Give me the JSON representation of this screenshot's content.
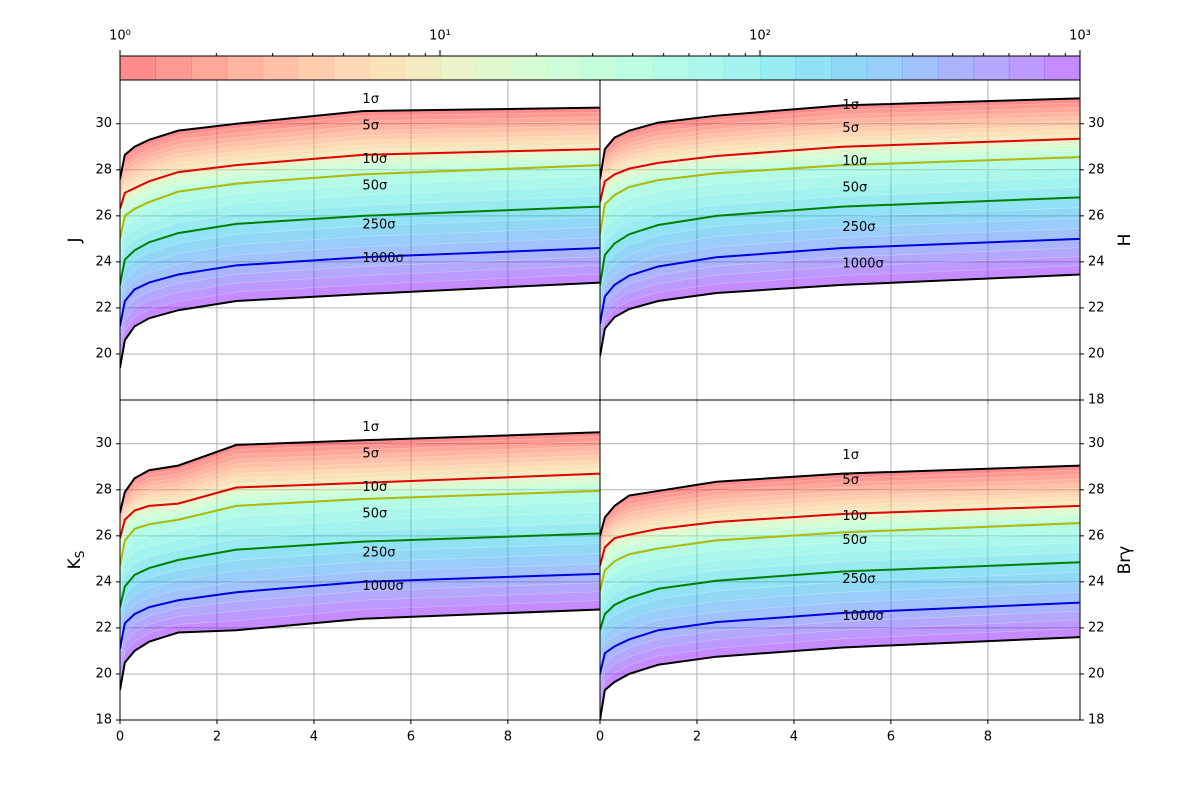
{
  "chart_data": [
    {
      "type": "colorbar",
      "log": true,
      "xlim": [
        1,
        1000
      ],
      "xticks": [
        {
          "value": 1,
          "label": "10⁰"
        },
        {
          "value": 10,
          "label": "10¹"
        },
        {
          "value": 100,
          "label": "10²"
        },
        {
          "value": 1000,
          "label": "10³"
        }
      ]
    },
    {
      "type": "line",
      "ylabel": "J",
      "ylabel_side": "left",
      "xticklabels": false,
      "grid": true,
      "x": [
        0,
        0.1,
        0.3,
        0.6,
        1.2,
        2.4,
        5,
        9.9
      ],
      "xlim": [
        0,
        9.9
      ],
      "xticks": [
        0,
        2,
        4,
        6,
        8
      ],
      "ylim": [
        18,
        31.9
      ],
      "yticks": [
        20,
        22,
        24,
        26,
        28,
        30
      ],
      "series": [
        {
          "color": "#000000",
          "values": [
            27.6,
            28.65,
            29.0,
            29.3,
            29.7,
            30.0,
            30.55,
            30.7
          ]
        },
        {
          "color": "#e00000",
          "values": [
            26.3,
            27.0,
            27.2,
            27.5,
            27.9,
            28.2,
            28.65,
            28.9
          ]
        },
        {
          "color": "#b0b800",
          "values": [
            25.0,
            26.0,
            26.3,
            26.6,
            27.05,
            27.4,
            27.8,
            28.2
          ]
        },
        {
          "color": "#008000",
          "values": [
            23.0,
            24.1,
            24.5,
            24.85,
            25.25,
            25.65,
            26.0,
            26.4
          ]
        },
        {
          "color": "#0000e0",
          "values": [
            21.2,
            22.3,
            22.8,
            23.1,
            23.45,
            23.85,
            24.2,
            24.6
          ]
        },
        {
          "color": "#000000",
          "values": [
            19.4,
            20.6,
            21.2,
            21.55,
            21.9,
            22.3,
            22.6,
            23.1
          ]
        }
      ],
      "annotations": [
        {
          "text": "1σ",
          "x": 5,
          "y": 31.05
        },
        {
          "text": "5σ",
          "x": 5,
          "y": 29.9
        },
        {
          "text": "10σ",
          "x": 5,
          "y": 28.45
        },
        {
          "text": "50σ",
          "x": 5,
          "y": 27.3
        },
        {
          "text": "250σ",
          "x": 5,
          "y": 25.6
        },
        {
          "text": "1000σ",
          "x": 5,
          "y": 24.15
        }
      ]
    },
    {
      "type": "line",
      "ylabel": "H",
      "ylabel_side": "right",
      "xticklabels": false,
      "grid": true,
      "x": [
        0,
        0.1,
        0.3,
        0.6,
        1.2,
        2.4,
        5,
        9.9
      ],
      "xlim": [
        0,
        9.9
      ],
      "xticks": [
        0,
        2,
        4,
        6,
        8
      ],
      "ylim": [
        18,
        31.9
      ],
      "yticks": [
        18,
        20,
        22,
        24,
        26,
        28,
        30
      ],
      "series": [
        {
          "color": "#000000",
          "values": [
            27.6,
            28.9,
            29.4,
            29.7,
            30.05,
            30.35,
            30.8,
            31.1
          ]
        },
        {
          "color": "#e00000",
          "values": [
            26.6,
            27.5,
            27.8,
            28.05,
            28.3,
            28.6,
            29.0,
            29.35
          ]
        },
        {
          "color": "#b0b800",
          "values": [
            25.2,
            26.5,
            26.9,
            27.25,
            27.55,
            27.85,
            28.2,
            28.55
          ]
        },
        {
          "color": "#008000",
          "values": [
            23.0,
            24.3,
            24.8,
            25.2,
            25.6,
            26.0,
            26.4,
            26.8
          ]
        },
        {
          "color": "#0000e0",
          "values": [
            21.3,
            22.5,
            23.0,
            23.4,
            23.8,
            24.2,
            24.6,
            25.0
          ]
        },
        {
          "color": "#000000",
          "values": [
            19.9,
            21.1,
            21.6,
            21.95,
            22.3,
            22.65,
            23.0,
            23.45
          ]
        }
      ],
      "annotations": [
        {
          "text": "1σ",
          "x": 5,
          "y": 30.8
        },
        {
          "text": "5σ",
          "x": 5,
          "y": 29.8
        },
        {
          "text": "10σ",
          "x": 5,
          "y": 28.35
        },
        {
          "text": "50σ",
          "x": 5,
          "y": 27.2
        },
        {
          "text": "250σ",
          "x": 5,
          "y": 25.5
        },
        {
          "text": "1000σ",
          "x": 5,
          "y": 23.9
        }
      ]
    },
    {
      "type": "line",
      "ylabel": "K",
      "ylabel_subscript": "S",
      "ylabel_side": "left",
      "xticklabels": true,
      "grid": true,
      "x": [
        0,
        0.1,
        0.3,
        0.6,
        1.2,
        2.4,
        5,
        9.9
      ],
      "xlim": [
        0,
        9.9
      ],
      "xticks": [
        0,
        2,
        4,
        6,
        8
      ],
      "ylim": [
        18,
        31.9
      ],
      "yticks": [
        18,
        20,
        22,
        24,
        26,
        28,
        30
      ],
      "series": [
        {
          "color": "#000000",
          "values": [
            27.0,
            27.9,
            28.5,
            28.85,
            29.05,
            29.95,
            30.15,
            30.5
          ]
        },
        {
          "color": "#e00000",
          "values": [
            25.9,
            26.7,
            27.1,
            27.3,
            27.4,
            28.1,
            28.3,
            28.7
          ]
        },
        {
          "color": "#b0b800",
          "values": [
            24.7,
            25.8,
            26.3,
            26.5,
            26.7,
            27.3,
            27.6,
            27.95
          ]
        },
        {
          "color": "#008000",
          "values": [
            22.9,
            23.8,
            24.3,
            24.6,
            24.95,
            25.4,
            25.75,
            26.1
          ]
        },
        {
          "color": "#0000e0",
          "values": [
            21.1,
            22.2,
            22.6,
            22.9,
            23.2,
            23.55,
            24.0,
            24.35
          ]
        },
        {
          "color": "#000000",
          "values": [
            19.3,
            20.5,
            21.0,
            21.4,
            21.8,
            21.9,
            22.4,
            22.8
          ]
        }
      ],
      "annotations": [
        {
          "text": "1σ",
          "x": 5,
          "y": 30.7
        },
        {
          "text": "5σ",
          "x": 5,
          "y": 29.55
        },
        {
          "text": "10σ",
          "x": 5,
          "y": 28.1
        },
        {
          "text": "50σ",
          "x": 5,
          "y": 26.95
        },
        {
          "text": "250σ",
          "x": 5,
          "y": 25.25
        },
        {
          "text": "1000σ",
          "x": 5,
          "y": 23.8
        }
      ]
    },
    {
      "type": "line",
      "ylabel": "Brγ",
      "ylabel_side": "right",
      "xticklabels": true,
      "grid": true,
      "x": [
        0,
        0.1,
        0.3,
        0.6,
        1.2,
        2.4,
        5,
        9.9
      ],
      "xlim": [
        0,
        9.9
      ],
      "xticks": [
        0,
        2,
        4,
        6,
        8
      ],
      "ylim": [
        18,
        31.9
      ],
      "yticks": [
        18,
        20,
        22,
        24,
        26,
        28,
        30
      ],
      "series": [
        {
          "color": "#000000",
          "values": [
            26.0,
            26.8,
            27.3,
            27.75,
            27.95,
            28.35,
            28.7,
            29.05
          ]
        },
        {
          "color": "#e00000",
          "values": [
            24.7,
            25.5,
            25.9,
            26.05,
            26.3,
            26.6,
            26.95,
            27.3
          ]
        },
        {
          "color": "#b0b800",
          "values": [
            23.6,
            24.5,
            24.9,
            25.2,
            25.45,
            25.8,
            26.15,
            26.55
          ]
        },
        {
          "color": "#008000",
          "values": [
            21.9,
            22.6,
            23.0,
            23.3,
            23.7,
            24.05,
            24.45,
            24.85
          ]
        },
        {
          "color": "#0000e0",
          "values": [
            20.0,
            20.9,
            21.2,
            21.5,
            21.9,
            22.25,
            22.65,
            23.1
          ]
        },
        {
          "color": "#000000",
          "values": [
            18.0,
            19.3,
            19.65,
            20.0,
            20.4,
            20.75,
            21.15,
            21.6
          ]
        }
      ],
      "annotations": [
        {
          "text": "1σ",
          "x": 5,
          "y": 29.5
        },
        {
          "text": "5σ",
          "x": 5,
          "y": 28.4
        },
        {
          "text": "10σ",
          "x": 5,
          "y": 26.85
        },
        {
          "text": "50σ",
          "x": 5,
          "y": 25.8
        },
        {
          "text": "250σ",
          "x": 5,
          "y": 24.1
        },
        {
          "text": "1000σ",
          "x": 5,
          "y": 22.5
        }
      ]
    }
  ]
}
